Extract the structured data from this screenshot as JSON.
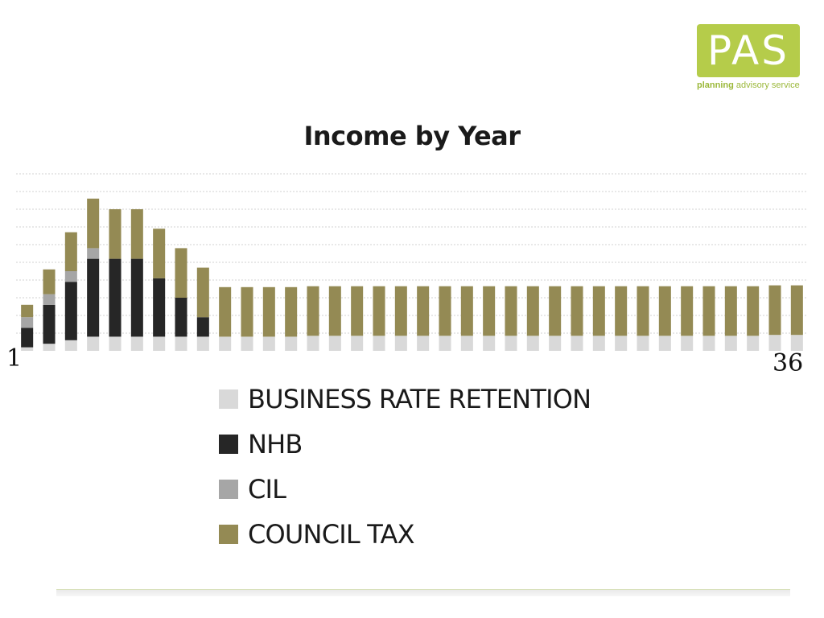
{
  "logo": {
    "text": "PAS",
    "subtitle_word1": "planning",
    "subtitle_rest": " advisory service",
    "box_color": "#b5cc4a",
    "subtitle_color": "#9bb83a"
  },
  "colors": {
    "business_rate_retention": "#d9d9d9",
    "nhb": "#262626",
    "cil": "#a6a6a6",
    "council_tax": "#948a54",
    "gridline": "#d0d0d0"
  },
  "chart_data": {
    "type": "bar",
    "stacked": true,
    "title": "Income by Year",
    "xlabel": "",
    "ylabel": "",
    "x_tick_first": "1",
    "x_tick_last": "36",
    "ylim": [
      0,
      10
    ],
    "grid": true,
    "legend_position": "bottom",
    "categories": [
      1,
      2,
      3,
      4,
      5,
      6,
      7,
      8,
      9,
      10,
      11,
      12,
      13,
      14,
      15,
      16,
      17,
      18,
      19,
      20,
      21,
      22,
      23,
      24,
      25,
      26,
      27,
      28,
      29,
      30,
      31,
      32,
      33,
      34,
      35,
      36
    ],
    "series": [
      {
        "name": "BUSINESS RATE RETENTION",
        "values": [
          0.2,
          0.4,
          0.6,
          0.8,
          0.8,
          0.8,
          0.8,
          0.8,
          0.8,
          0.8,
          0.8,
          0.8,
          0.8,
          0.85,
          0.85,
          0.85,
          0.85,
          0.85,
          0.85,
          0.85,
          0.85,
          0.85,
          0.85,
          0.85,
          0.85,
          0.85,
          0.85,
          0.85,
          0.85,
          0.85,
          0.85,
          0.85,
          0.85,
          0.85,
          0.9,
          0.9
        ]
      },
      {
        "name": "NHB",
        "values": [
          1.1,
          2.2,
          3.3,
          4.4,
          4.4,
          4.4,
          3.3,
          2.2,
          1.1,
          0,
          0,
          0,
          0,
          0,
          0,
          0,
          0,
          0,
          0,
          0,
          0,
          0,
          0,
          0,
          0,
          0,
          0,
          0,
          0,
          0,
          0,
          0,
          0,
          0,
          0,
          0
        ]
      },
      {
        "name": "CIL",
        "values": [
          0.6,
          0.6,
          0.6,
          0.6,
          0,
          0,
          0,
          0,
          0,
          0,
          0,
          0,
          0,
          0,
          0,
          0,
          0,
          0,
          0,
          0,
          0,
          0,
          0,
          0,
          0,
          0,
          0,
          0,
          0,
          0,
          0,
          0,
          0,
          0,
          0,
          0
        ]
      },
      {
        "name": "COUNCIL TAX",
        "values": [
          0.7,
          1.4,
          2.2,
          2.8,
          2.8,
          2.8,
          2.8,
          2.8,
          2.8,
          2.8,
          2.8,
          2.8,
          2.8,
          2.8,
          2.8,
          2.8,
          2.8,
          2.8,
          2.8,
          2.8,
          2.8,
          2.8,
          2.8,
          2.8,
          2.8,
          2.8,
          2.8,
          2.8,
          2.8,
          2.8,
          2.8,
          2.8,
          2.8,
          2.8,
          2.8,
          2.8
        ]
      }
    ]
  }
}
